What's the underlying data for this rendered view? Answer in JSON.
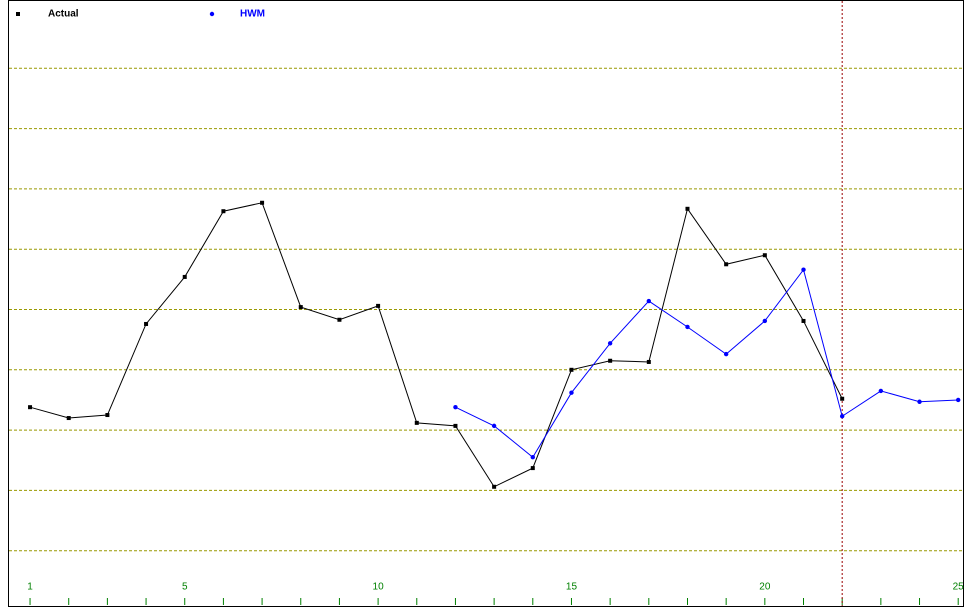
{
  "chart_data": {
    "type": "line",
    "x": [
      1,
      2,
      3,
      4,
      5,
      6,
      7,
      8,
      9,
      10,
      11,
      12,
      13,
      14,
      15,
      16,
      17,
      18,
      19,
      20,
      21,
      22,
      23,
      24,
      25
    ],
    "series": [
      {
        "name": "Actual",
        "color": "#000000",
        "marker": "square",
        "values": [
          3.38,
          3.2,
          3.25,
          4.76,
          5.54,
          6.63,
          6.77,
          5.04,
          4.83,
          5.06,
          3.12,
          3.07,
          2.06,
          2.37,
          4.0,
          4.15,
          4.13,
          6.67,
          5.75,
          5.9,
          4.81,
          3.52,
          null,
          null,
          null
        ]
      },
      {
        "name": "HWM",
        "color": "#0000ff",
        "marker": "circle",
        "values": [
          null,
          null,
          null,
          null,
          null,
          null,
          null,
          null,
          null,
          null,
          null,
          3.38,
          3.07,
          2.55,
          3.62,
          4.44,
          5.14,
          4.71,
          4.26,
          4.81,
          5.66,
          3.23,
          3.65,
          3.47,
          3.5
        ]
      }
    ],
    "xlim": [
      0.43,
      25.15
    ],
    "xticks": [
      1,
      5,
      10,
      15,
      20,
      25
    ],
    "xminor_ticks": [
      1,
      2,
      3,
      4,
      5,
      6,
      7,
      8,
      9,
      10,
      11,
      12,
      13,
      14,
      15,
      16,
      17,
      18,
      19,
      20,
      21,
      22,
      23,
      24,
      25
    ],
    "ylim": [
      0,
      10
    ],
    "yticks": [
      1,
      2,
      3,
      4,
      5,
      6,
      7,
      8,
      9
    ],
    "grid": true,
    "grid_color": "#999900",
    "vline": 22,
    "vline_color": "#990000",
    "tick_color": "#008000"
  }
}
